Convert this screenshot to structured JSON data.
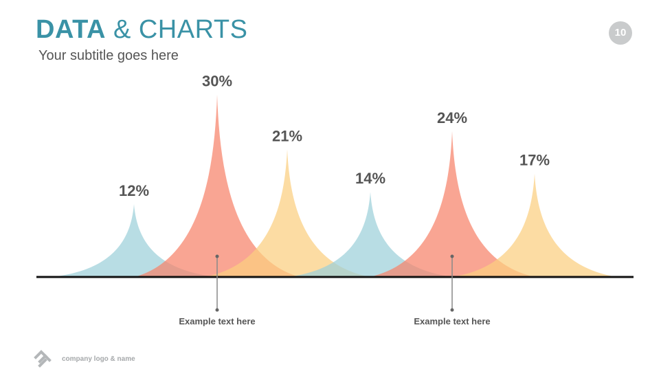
{
  "header": {
    "title_bold": "DATA",
    "title_rest": " & CHARTS",
    "subtitle": "Your subtitle goes here",
    "page_number": "10"
  },
  "footer": {
    "logo_text": "company logo & name"
  },
  "colors": {
    "accent": "#3a92a6",
    "blue": "#9dd0da",
    "red": "#f7826a",
    "yellow": "#fbce80",
    "axis": "#111111"
  },
  "chart_data": {
    "type": "area",
    "values": [
      12,
      30,
      21,
      14,
      24,
      17
    ],
    "labels": [
      "12%",
      "30%",
      "21%",
      "14%",
      "24%",
      "17%"
    ],
    "series_colors": [
      "blue",
      "red",
      "yellow",
      "blue",
      "red",
      "yellow"
    ],
    "ylim": [
      0,
      32
    ],
    "annotations": [
      {
        "text": "Example text here",
        "peak_index": 1
      },
      {
        "text": "Example text here",
        "peak_index": 4
      }
    ]
  }
}
